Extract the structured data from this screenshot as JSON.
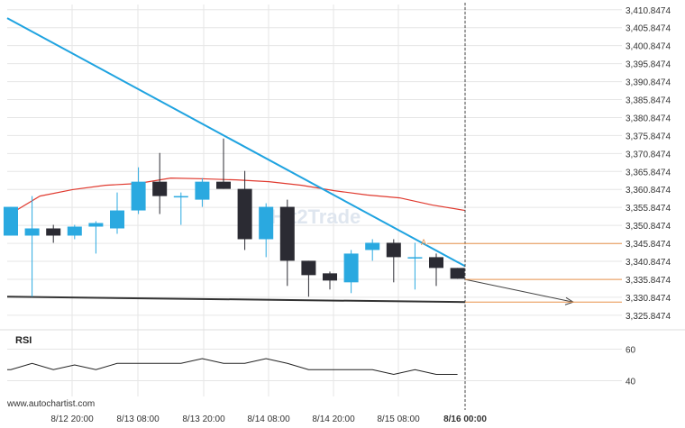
{
  "watermark": "Hit2Trade",
  "footer_text": "www.autochartist.com",
  "rsi_label": "RSI",
  "pattern_marker": "A",
  "colors": {
    "bull": "#2aa9e0",
    "bear": "#2b2b33",
    "trend_upper": "#1fa3e0",
    "moving_average": "#e03a2f",
    "support_line": "#333333",
    "level_lines": "#e8924a",
    "current_time_line": "#444444"
  },
  "chart_data": {
    "type": "candlestick",
    "y_ticks": [
      "3,410.8474",
      "3,405.8474",
      "3,400.8474",
      "3,395.8474",
      "3,390.8474",
      "3,385.8474",
      "3,380.8474",
      "3,375.8474",
      "3,370.8474",
      "3,365.8474",
      "3,360.8474",
      "3,355.8474",
      "3,350.8474",
      "3,345.8474",
      "3,340.8474",
      "3,335.8474",
      "3,330.8474",
      "3,325.8474"
    ],
    "y_range": [
      3323.3,
      3412.3
    ],
    "x_labels": [
      "8/12 20:00",
      "8/13 08:00",
      "8/13 20:00",
      "8/14 08:00",
      "8/14 20:00",
      "8/15 08:00",
      "8/16 00:00"
    ],
    "candles": [
      {
        "open": 3348.0,
        "high": 3356.0,
        "low": 3348.0,
        "close": 3356.0
      },
      {
        "open": 3348.0,
        "high": 3359.0,
        "low": 3331.0,
        "close": 3350.0
      },
      {
        "open": 3350.0,
        "high": 3351.0,
        "low": 3346.0,
        "close": 3348.0
      },
      {
        "open": 3348.0,
        "high": 3351.0,
        "low": 3347.0,
        "close": 3350.5
      },
      {
        "open": 3350.5,
        "high": 3352.0,
        "low": 3343.0,
        "close": 3351.5
      },
      {
        "open": 3350.0,
        "high": 3360.0,
        "low": 3348.5,
        "close": 3355.0
      },
      {
        "open": 3355.0,
        "high": 3367.0,
        "low": 3354.0,
        "close": 3363.0
      },
      {
        "open": 3363.0,
        "high": 3371.0,
        "low": 3354.0,
        "close": 3359.0
      },
      {
        "open": 3359.0,
        "high": 3360.0,
        "low": 3351.0,
        "close": 3359.0
      },
      {
        "open": 3358.0,
        "high": 3364.0,
        "low": 3356.0,
        "close": 3363.0
      },
      {
        "open": 3363.0,
        "high": 3375.0,
        "low": 3361.0,
        "close": 3361.0
      },
      {
        "open": 3361.0,
        "high": 3366.0,
        "low": 3344.0,
        "close": 3347.0
      },
      {
        "open": 3347.0,
        "high": 3357.0,
        "low": 3342.0,
        "close": 3356.0
      },
      {
        "open": 3356.0,
        "high": 3358.0,
        "low": 3334.0,
        "close": 3341.0
      },
      {
        "open": 3341.0,
        "high": 3341.0,
        "low": 3331.0,
        "close": 3337.0
      },
      {
        "open": 3337.5,
        "high": 3338.0,
        "low": 3333.0,
        "close": 3335.5
      },
      {
        "open": 3335.0,
        "high": 3344.0,
        "low": 3332.0,
        "close": 3343.0
      },
      {
        "open": 3344.0,
        "high": 3347.0,
        "low": 3341.0,
        "close": 3346.0
      },
      {
        "open": 3346.0,
        "high": 3347.0,
        "low": 3335.0,
        "close": 3342.0
      },
      {
        "open": 3342.0,
        "high": 3346.0,
        "low": 3333.0,
        "close": 3342.0
      },
      {
        "open": 3342.0,
        "high": 3343.0,
        "low": 3334.0,
        "close": 3339.0
      },
      {
        "open": 3339.0,
        "high": 3339.0,
        "low": 3336.0,
        "close": 3336.0
      }
    ],
    "moving_average": [
      3353.5,
      3359.0,
      3360.8,
      3362.0,
      3362.5,
      3364.0,
      3363.8,
      3363.5,
      3363.0,
      3362.0,
      3360.5,
      3359.3,
      3358.5,
      3356.5,
      3355.0
    ],
    "trend_upper": {
      "start": 3408.5,
      "end": 3339.5
    },
    "support_line": {
      "start": 3331.0,
      "end": 3329.5
    },
    "levels": [
      3345.8,
      3335.8,
      3329.5
    ],
    "rsi": {
      "ticks": [
        "60",
        "40"
      ],
      "range": [
        30,
        70
      ],
      "values": [
        47,
        51,
        47,
        50,
        47,
        51,
        51,
        51,
        51,
        54,
        51,
        51,
        54,
        51,
        47,
        47,
        47,
        47,
        44,
        47,
        44,
        44
      ]
    }
  }
}
